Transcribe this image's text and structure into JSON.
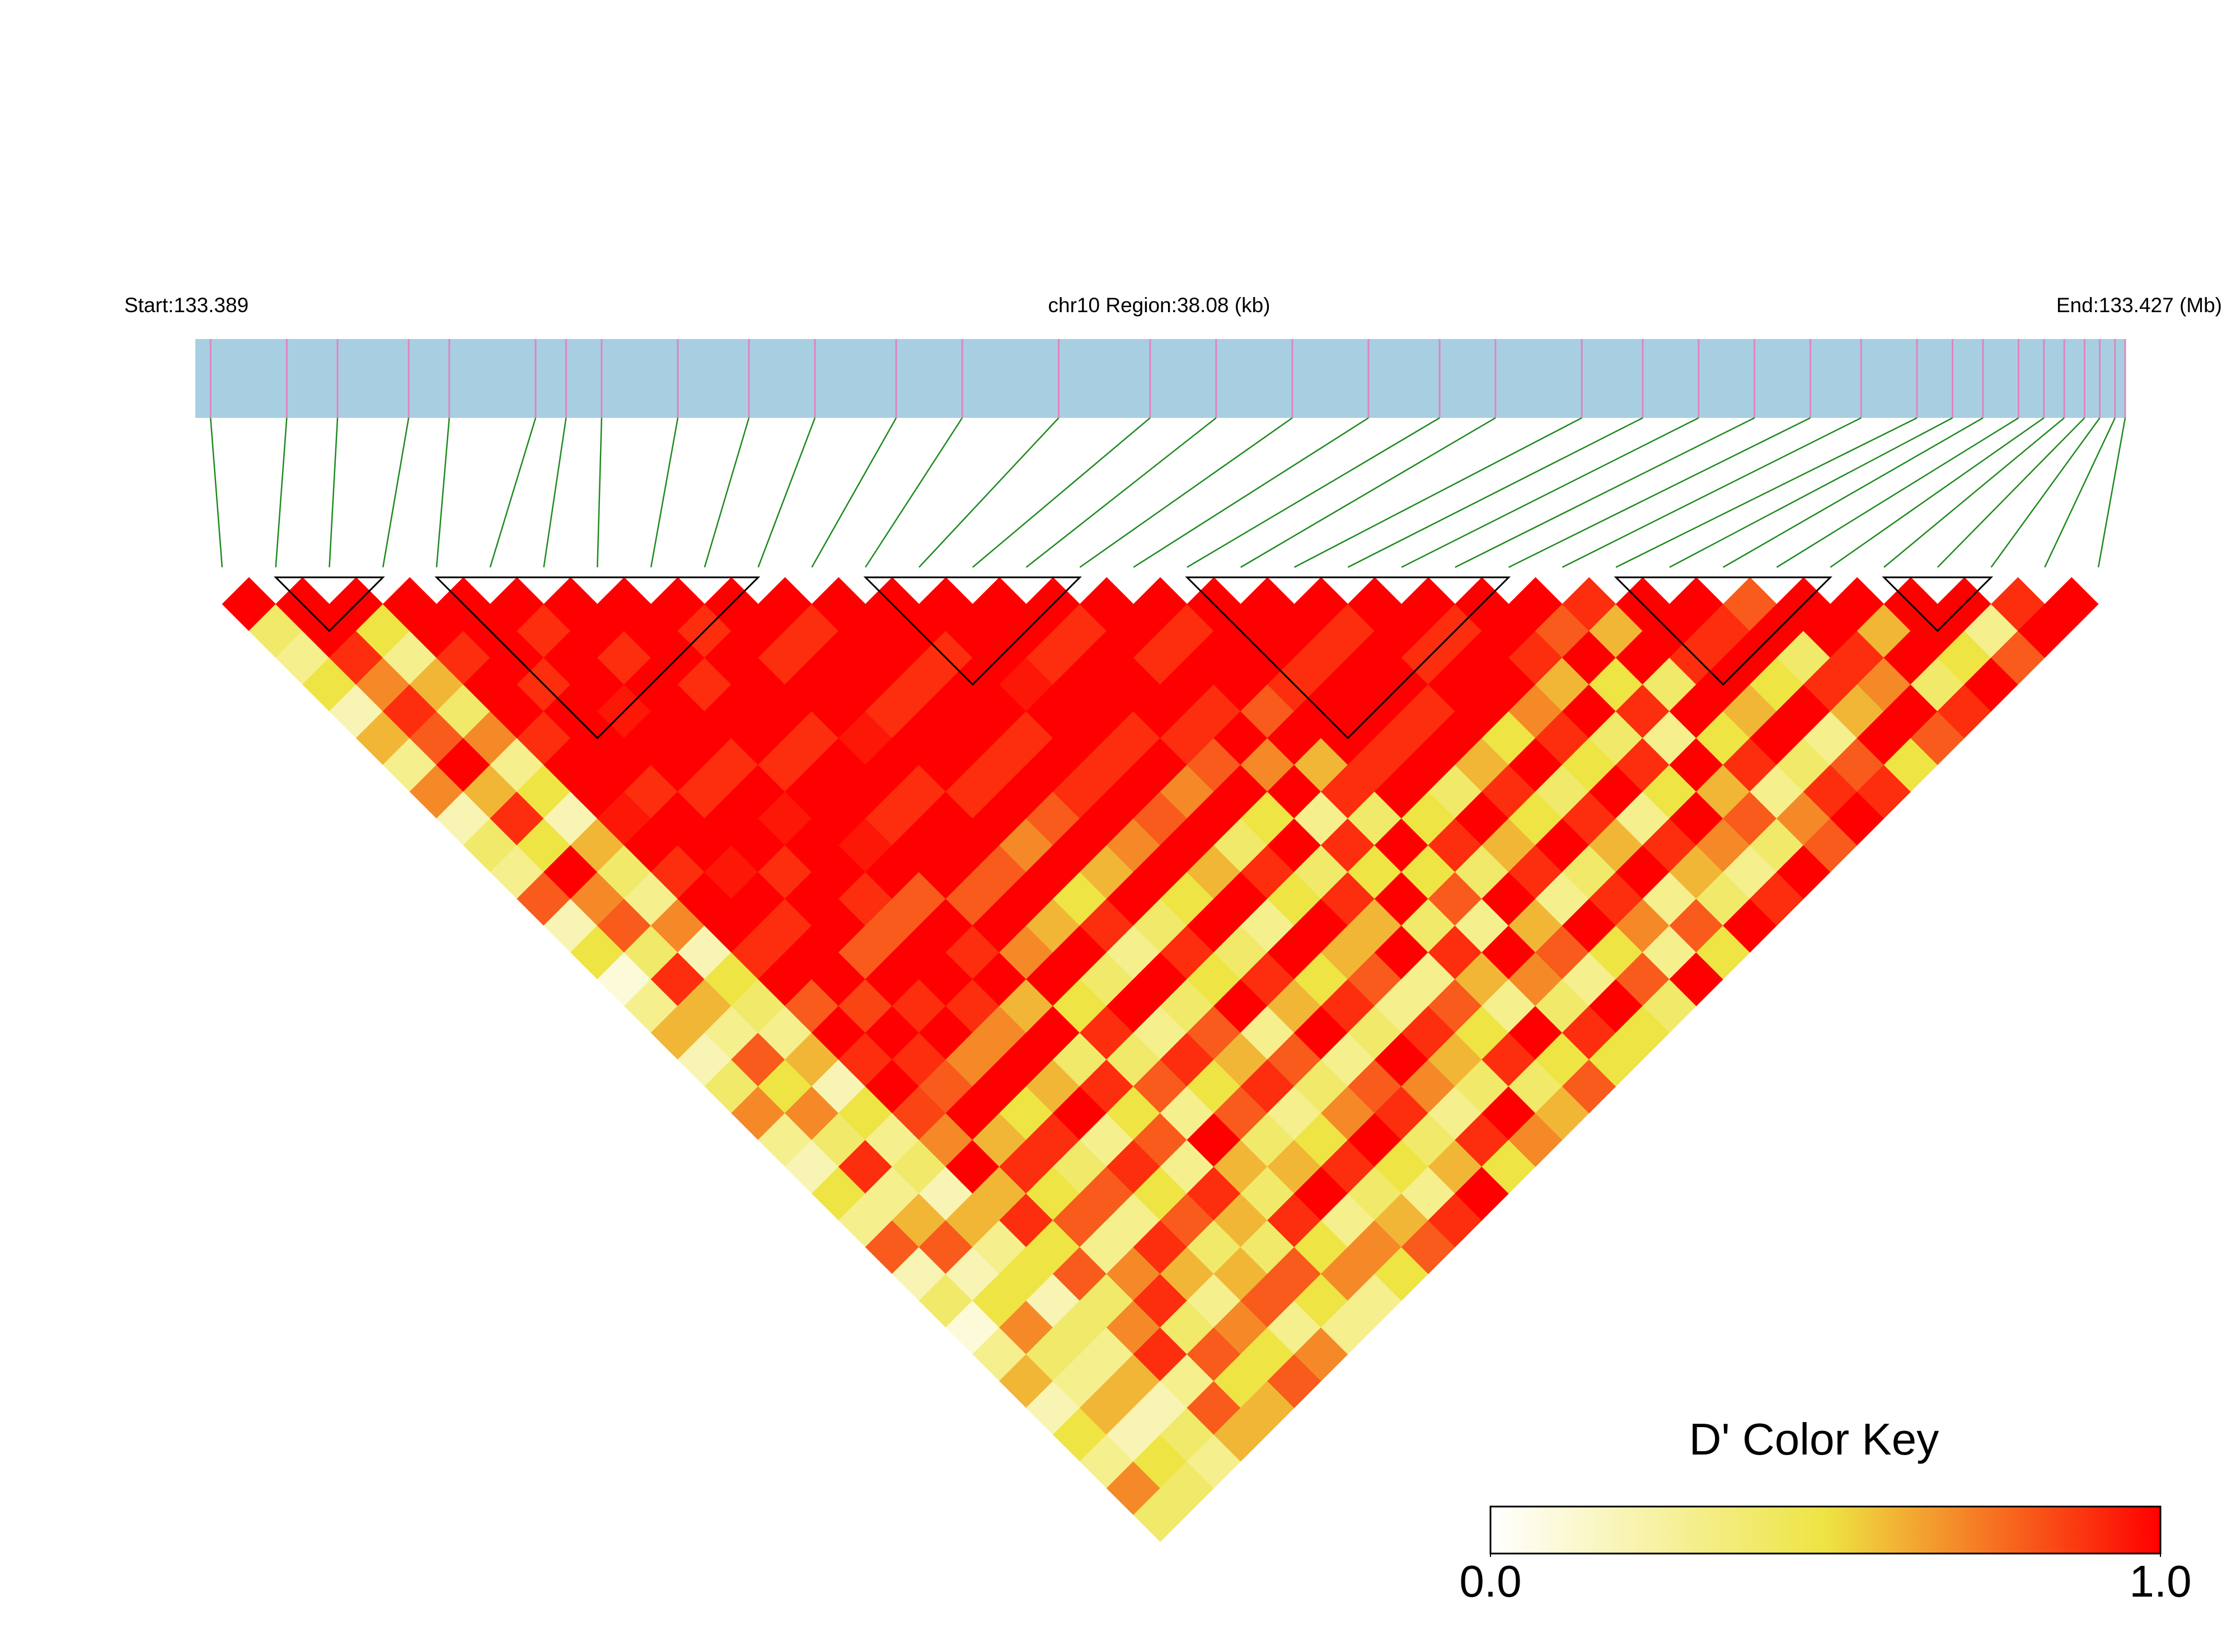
{
  "chart_data": {
    "type": "ld-heatmap",
    "start_label": "Start:133.389",
    "region_label": "chr10 Region:38.08 (kb)",
    "end_label": "End:133.427 (Mb)",
    "xlim": [
      133.389,
      133.427
    ],
    "positions": [
      133.3893,
      133.3908,
      133.3918,
      133.3932,
      133.394,
      133.3957,
      133.3963,
      133.397,
      133.3985,
      133.3999,
      133.4012,
      133.4028,
      133.4041,
      133.406,
      133.4078,
      133.4091,
      133.4106,
      133.4121,
      133.4135,
      133.4146,
      133.4163,
      133.4175,
      133.4186,
      133.4197,
      133.4208,
      133.4218,
      133.4229,
      133.4236,
      133.4242,
      133.4249,
      133.4254,
      133.4258,
      133.4262,
      133.4265,
      133.4268,
      133.427
    ],
    "bar_color": "#a8cfe1",
    "snp_tick_color": "#e283c0",
    "connector_color": "#1f8a1f",
    "dprime": [
      [
        1,
        0.4,
        0.3,
        0.5,
        0.2,
        0.6,
        0.3,
        0.7,
        0.2,
        0.4,
        0.3,
        0.8,
        0.2,
        0.5,
        0.1,
        0.3,
        0.6,
        0.2,
        0.4,
        0.7,
        0.3,
        0.2,
        0.5,
        0.3,
        0.8,
        0.2,
        0.4,
        0.1,
        0.3,
        0.6,
        0.2,
        0.5,
        0.3,
        0.7,
        0.4
      ],
      [
        1,
        1,
        0.9,
        0.7,
        0.9,
        0.8,
        1,
        0.6,
        0.9,
        0.5,
        1,
        0.7,
        0.8,
        0.4,
        0.9,
        0.6,
        0.3,
        0.8,
        0.5,
        0.7,
        0.4,
        0.9,
        0.3,
        0.6,
        0.8,
        0.2,
        0.5,
        0.7,
        0.4,
        0.3,
        0.6,
        0.2,
        0.5,
        0.4
      ],
      [
        1,
        0.5,
        0.3,
        0.6,
        0.4,
        0.7,
        0.3,
        0.5,
        0.2,
        0.6,
        0.4,
        0.3,
        0.7,
        0.2,
        0.5,
        0.4,
        0.3,
        0.6,
        0.2,
        0.5,
        0.3,
        0.4,
        0.2,
        0.6,
        0.3,
        0.5,
        0.2,
        0.4,
        0.3,
        0.6,
        0.2,
        0.4,
        0.3
      ],
      [
        1,
        1,
        0.9,
        1,
        1,
        0.9,
        1,
        1,
        0.95,
        1,
        0.9,
        1,
        1,
        0.9,
        1,
        0.8,
        1,
        0.9,
        1,
        0.85,
        0.7,
        1,
        0.6,
        0.9,
        0.5,
        0.8,
        0.4,
        0.7,
        0.9,
        0.3,
        0.8,
        0.6
      ],
      [
        1,
        1,
        1,
        0.9,
        1,
        1,
        1,
        0.9,
        1,
        1,
        0.95,
        1,
        0.9,
        1,
        1,
        0.85,
        1,
        0.9,
        0.8,
        1,
        0.6,
        0.9,
        0.5,
        0.8,
        0.3,
        0.7,
        0.9,
        0.4,
        0.8,
        0.5,
        0.6
      ],
      [
        1,
        0.9,
        1,
        1,
        0.95,
        1,
        1,
        0.9,
        1,
        1,
        0.9,
        1,
        1,
        0.8,
        1,
        0.9,
        1,
        0.7,
        1,
        0.5,
        0.9,
        0.4,
        0.8,
        0.3,
        0.9,
        0.6,
        0.3,
        0.7,
        0.5,
        0.8
      ],
      [
        1,
        1,
        0.9,
        1,
        1,
        1,
        0.9,
        1,
        0.95,
        1,
        1,
        0.9,
        0.8,
        1,
        1,
        0.9,
        0.7,
        1,
        0.6,
        1,
        0.3,
        0.9,
        0.5,
        0.8,
        0.4,
        0.6,
        0.8,
        0.3,
        0.7
      ],
      [
        1,
        1,
        1,
        0.9,
        1,
        1,
        0.9,
        1,
        1,
        0.95,
        1,
        0.8,
        1,
        0.9,
        1,
        0.6,
        1,
        0.4,
        0.9,
        0.5,
        0.8,
        0.3,
        0.9,
        0.6,
        0.4,
        0.8,
        0.5,
        0.3
      ],
      [
        1,
        0.9,
        1,
        1,
        1,
        0.9,
        1,
        1,
        0.9,
        1,
        1,
        0.8,
        1,
        0.7,
        1,
        0.5,
        0.9,
        0.4,
        0.8,
        0.3,
        1,
        0.6,
        0.4,
        0.9,
        0.5,
        0.7,
        0.3
      ],
      [
        1,
        1,
        0.9,
        1,
        1,
        0.95,
        1,
        0.9,
        1,
        1,
        0.8,
        1,
        0.6,
        1,
        0.4,
        1,
        0.3,
        0.9,
        0.5,
        0.8,
        0.4,
        0.6,
        1,
        0.3,
        0.7,
        0.5
      ],
      [
        1,
        0.9,
        1,
        1,
        0.9,
        1,
        1,
        0.9,
        1,
        0.7,
        1,
        0.5,
        0.9,
        0.3,
        1,
        0.4,
        0.8,
        0.6,
        0.9,
        0.3,
        0.5,
        0.9,
        0.4,
        0.6,
        0.8
      ],
      [
        1,
        1,
        1,
        0.9,
        1,
        1,
        0.9,
        1,
        0.8,
        1,
        0.6,
        1,
        0.4,
        0.9,
        0.5,
        1,
        0.3,
        0.8,
        0.4,
        0.7,
        1,
        0.5,
        0.3,
        0.9
      ],
      [
        1,
        1,
        0.9,
        1,
        1,
        0.9,
        1,
        0.9,
        1,
        0.7,
        1,
        0.5,
        1,
        0.4,
        0.9,
        0.6,
        1,
        0.3,
        0.8,
        0.9,
        0.4,
        0.6,
        1
      ],
      [
        1,
        1,
        1,
        0.95,
        1,
        1,
        0.9,
        1,
        0.8,
        1,
        0.6,
        1,
        0.3,
        1,
        0.5,
        0.9,
        0.4,
        1,
        0.7,
        0.3,
        0.9,
        0.5
      ],
      [
        1,
        1,
        0.9,
        1,
        1,
        0.9,
        1,
        0.7,
        1,
        0.4,
        0.9,
        0.5,
        1,
        0.6,
        0.8,
        0.3,
        0.9,
        0.6,
        0.4,
        1,
        0.7
      ],
      [
        1,
        0.9,
        1,
        1,
        1,
        0.9,
        0.8,
        1,
        0.5,
        1,
        0.4,
        0.9,
        0.6,
        1,
        0.3,
        0.8,
        0.5,
        0.9,
        0.4,
        0.6
      ],
      [
        1,
        1,
        0.9,
        1,
        0.9,
        1,
        0.7,
        1,
        0.3,
        0.9,
        0.5,
        1,
        0.4,
        0.9,
        0.6,
        0.3,
        1,
        0.5,
        0.8
      ],
      [
        1,
        0.9,
        1,
        1,
        0.8,
        1,
        0.6,
        0.9,
        0.4,
        1,
        0.5,
        0.8,
        0.3,
        1,
        0.7,
        0.4,
        0.9,
        0.5
      ],
      [
        1,
        1,
        1,
        0.9,
        1,
        1,
        0.9,
        1,
        0.5,
        0.9,
        0.4,
        1,
        0.6,
        0.8,
        0.3,
        1,
        0.5
      ],
      [
        1,
        1,
        0.9,
        1,
        1,
        0.9,
        1,
        0.4,
        1,
        0.6,
        0.9,
        0.3,
        1,
        0.5,
        0.8,
        0.4
      ],
      [
        1,
        0.9,
        1,
        1,
        0.9,
        1,
        0.6,
        0.9,
        0.5,
        1,
        0.4,
        0.9,
        0.7,
        0.3,
        1
      ],
      [
        1,
        1,
        0.9,
        1,
        1,
        0.5,
        1,
        0.4,
        0.9,
        0.6,
        1,
        0.3,
        0.8,
        0.5
      ],
      [
        1,
        0.9,
        1,
        1,
        0.7,
        0.9,
        0.5,
        1,
        0.3,
        0.9,
        0.6,
        0.4,
        1
      ],
      [
        1,
        1,
        0.9,
        0.6,
        1,
        0.4,
        0.9,
        0.5,
        1,
        0.7,
        0.3,
        0.9
      ],
      [
        1,
        0.8,
        1,
        0.5,
        0.9,
        0.3,
        1,
        0.6,
        0.8,
        0.4,
        1
      ],
      [
        0.9,
        0.6,
        1,
        0.4,
        1,
        0.5,
        0.9,
        0.3,
        0.7,
        0.8
      ],
      [
        1,
        1,
        0.9,
        1,
        0.6,
        1,
        0.4,
        0.9,
        1
      ],
      [
        1,
        0.9,
        1,
        0.5,
        1,
        0.3,
        0.8,
        0.9
      ],
      [
        0.8,
        1,
        0.4,
        0.9,
        0.6,
        1,
        0.5
      ],
      [
        1,
        1,
        0.9,
        0.7,
        1,
        0.8
      ],
      [
        1,
        0.6,
        1,
        0.4,
        0.9
      ],
      [
        1,
        1,
        0.5,
        1
      ],
      [
        1,
        0.3,
        0.8
      ],
      [
        0.9,
        1
      ],
      [
        1
      ]
    ],
    "blocks": [
      [
        1,
        3
      ],
      [
        4,
        10
      ],
      [
        12,
        16
      ],
      [
        18,
        24
      ],
      [
        26,
        30
      ],
      [
        31,
        33
      ]
    ],
    "block_color": "#000000",
    "key_title": "D' Color Key",
    "clim": [
      0,
      1
    ],
    "colormap": [
      "#ffffff",
      "#eee443",
      "#ff0000"
    ],
    "key_ticks": [
      {
        "value": 0,
        "label": "0.0"
      },
      {
        "value": 1,
        "label": "1.0"
      }
    ]
  }
}
